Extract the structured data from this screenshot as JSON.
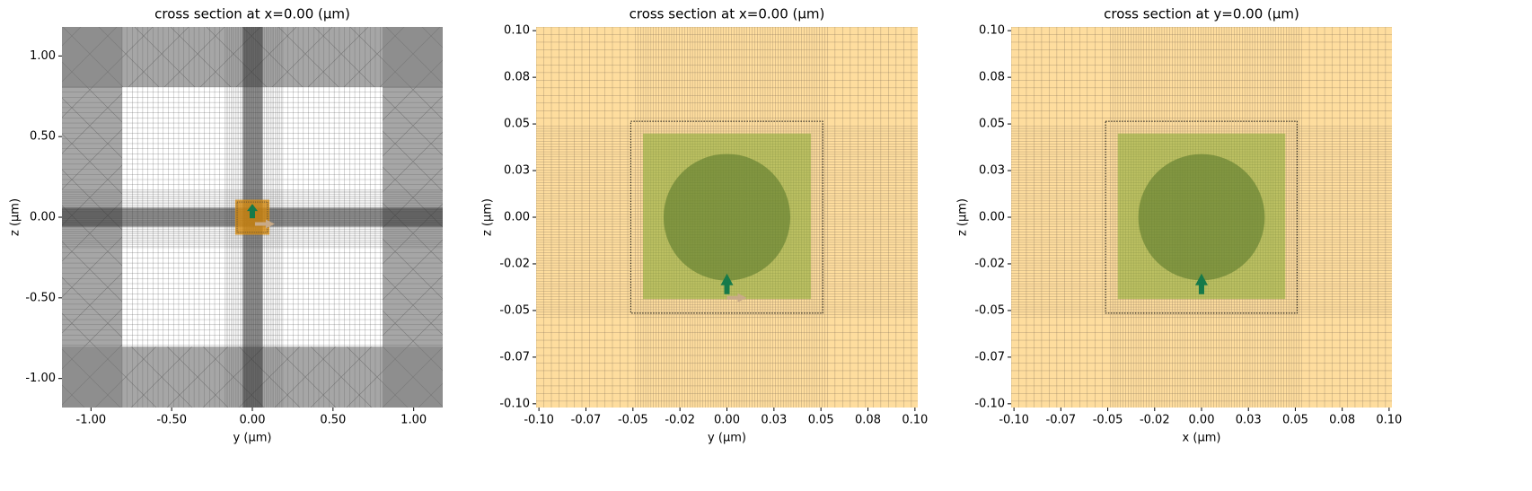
{
  "chart_data": [
    {
      "type": "structure",
      "title": "cross section at x=0.00 (μm)",
      "x_label": "y (μm)",
      "y_label": "z (μm)",
      "xlim": [
        -1.18,
        1.18
      ],
      "ylim": [
        -1.18,
        1.18
      ],
      "xticks": [
        {
          "value": -1,
          "label": "-1.00"
        },
        {
          "value": -0.5,
          "label": "-0.50"
        },
        {
          "value": 0,
          "label": "0.00"
        },
        {
          "value": 0.5,
          "label": "0.50"
        },
        {
          "value": 1,
          "label": "1.00"
        }
      ],
      "yticks": [
        {
          "value": -1,
          "label": "-1.00"
        },
        {
          "value": -0.5,
          "label": "-0.50"
        },
        {
          "value": 0,
          "label": "0.00"
        },
        {
          "value": 0.5,
          "label": "0.50"
        },
        {
          "value": 1,
          "label": "1.00"
        }
      ]
    },
    {
      "type": "structure",
      "title": "cross section at x=0.00 (μm)",
      "x_label": "y (μm)",
      "y_label": "z (μm)",
      "xlim": [
        -0.1015,
        0.1015
      ],
      "ylim": [
        -0.102,
        0.102
      ],
      "xticks": [
        {
          "value": -0.1,
          "label": "-0.10"
        },
        {
          "value": -0.075,
          "label": "-0.07"
        },
        {
          "value": -0.05,
          "label": "-0.05"
        },
        {
          "value": -0.025,
          "label": "-0.02"
        },
        {
          "value": 0,
          "label": "0.00"
        },
        {
          "value": 0.025,
          "label": "0.03"
        },
        {
          "value": 0.05,
          "label": "0.05"
        },
        {
          "value": 0.075,
          "label": "0.08"
        },
        {
          "value": 0.1,
          "label": "0.10"
        }
      ],
      "yticks": [
        {
          "value": -0.1,
          "label": "-0.10"
        },
        {
          "value": -0.075,
          "label": "-0.07"
        },
        {
          "value": -0.05,
          "label": "-0.05"
        },
        {
          "value": -0.025,
          "label": "-0.02"
        },
        {
          "value": 0,
          "label": "0.00"
        },
        {
          "value": 0.025,
          "label": "0.03"
        },
        {
          "value": 0.05,
          "label": "0.05"
        },
        {
          "value": 0.075,
          "label": "0.08"
        },
        {
          "value": 0.1,
          "label": "0.10"
        }
      ]
    },
    {
      "type": "structure",
      "title": "cross section at y=0.00 (μm)",
      "x_label": "x (μm)",
      "y_label": "z (μm)",
      "xlim": [
        -0.1015,
        0.1015
      ],
      "ylim": [
        -0.102,
        0.102
      ],
      "xticks": [
        {
          "value": -0.1,
          "label": "-0.10"
        },
        {
          "value": -0.075,
          "label": "-0.07"
        },
        {
          "value": -0.05,
          "label": "-0.05"
        },
        {
          "value": -0.025,
          "label": "-0.02"
        },
        {
          "value": 0,
          "label": "0.00"
        },
        {
          "value": 0.025,
          "label": "0.03"
        },
        {
          "value": 0.05,
          "label": "0.05"
        },
        {
          "value": 0.075,
          "label": "0.08"
        },
        {
          "value": 0.1,
          "label": "0.10"
        }
      ],
      "yticks": [
        {
          "value": -0.1,
          "label": "-0.10"
        },
        {
          "value": -0.075,
          "label": "-0.07"
        },
        {
          "value": -0.05,
          "label": "-0.05"
        },
        {
          "value": -0.025,
          "label": "-0.02"
        },
        {
          "value": 0,
          "label": "0.00"
        },
        {
          "value": 0.025,
          "label": "0.03"
        },
        {
          "value": 0.05,
          "label": "0.05"
        },
        {
          "value": 0.075,
          "label": "0.08"
        },
        {
          "value": 0.1,
          "label": "0.10"
        }
      ]
    }
  ]
}
